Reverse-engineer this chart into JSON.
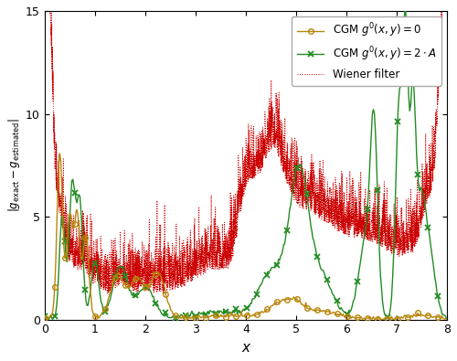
{
  "xlabel": "x",
  "xlim": [
    0,
    8
  ],
  "ylim": [
    0,
    15
  ],
  "yticks": [
    0,
    5,
    10,
    15
  ],
  "xticks": [
    0,
    1,
    2,
    3,
    4,
    5,
    6,
    7,
    8
  ],
  "cgm0_color": "#B8860B",
  "cgm2A_color": "#228B22",
  "wiener_color": "#CC0000",
  "legend_labels": [
    "CGM $g^0(x,y)=0$",
    "CGM $g^0(x,y)=2\\cdot A$",
    "Wiener filter"
  ],
  "figsize": [
    5.0,
    3.95
  ],
  "dpi": 100
}
